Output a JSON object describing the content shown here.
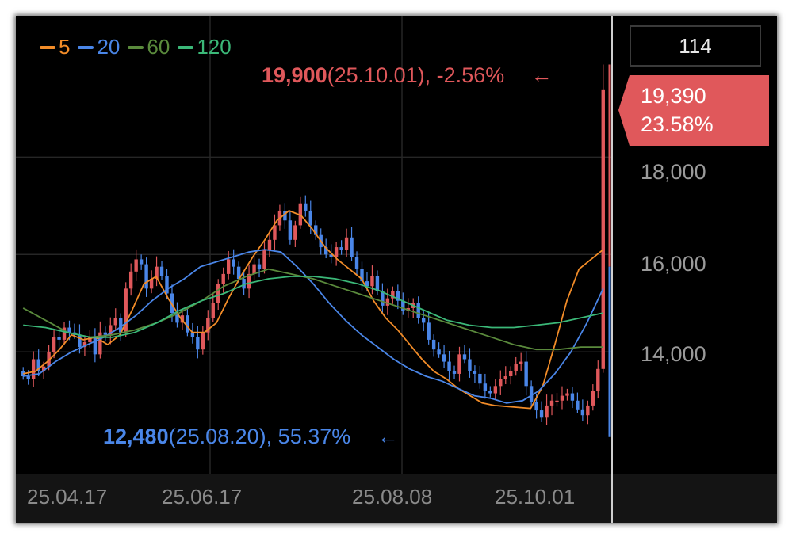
{
  "legend": [
    {
      "label": "5",
      "color": "#f28c28"
    },
    {
      "label": "20",
      "color": "#4a86e8"
    },
    {
      "label": "60",
      "color": "#5a8a3c"
    },
    {
      "label": "120",
      "color": "#3bb878"
    }
  ],
  "counter": "114",
  "annotations": {
    "high": {
      "value": "19,900",
      "detail": "(25.10.01), -2.56%",
      "arrow": "←"
    },
    "low": {
      "value": "12,480",
      "detail": "(25.08.20), 55.37%",
      "arrow": "←"
    }
  },
  "price_tag": {
    "price": "19,390",
    "change": "23.58%",
    "color": "#e0585b"
  },
  "colors": {
    "up": "#e0585b",
    "down": "#4a86e8",
    "background": "#000000",
    "grid": "#262626"
  },
  "chart_data": {
    "type": "candlestick",
    "y_ticks": [
      "18,000",
      "16,000",
      "14,000"
    ],
    "x_ticks": [
      "25.04.17",
      "25.06.17",
      "25.08.08",
      "25.10.01"
    ],
    "ylim": [
      11500,
      20900
    ],
    "n_candles": 114,
    "close": [
      13500,
      13450,
      13850,
      13600,
      13700,
      14000,
      14300,
      14250,
      14500,
      14400,
      14350,
      14100,
      14200,
      14300,
      13950,
      14400,
      14350,
      14550,
      14700,
      14400,
      15300,
      15650,
      15900,
      15800,
      15300,
      15500,
      15750,
      15550,
      15200,
      14800,
      14600,
      14750,
      14400,
      14300,
      14050,
      14400,
      14700,
      15000,
      15400,
      15600,
      15900,
      15750,
      15500,
      15300,
      15600,
      15800,
      15700,
      16100,
      16300,
      16600,
      16900,
      16700,
      16300,
      16600,
      17050,
      16900,
      16600,
      16400,
      16150,
      16000,
      15950,
      16150,
      16100,
      16350,
      15950,
      15700,
      15450,
      15350,
      15550,
      15250,
      14950,
      15100,
      15250,
      15050,
      14850,
      14900,
      15000,
      14700,
      14600,
      14250,
      14050,
      13950,
      13800,
      13600,
      13550,
      13950,
      13850,
      13600,
      13550,
      13350,
      13200,
      13150,
      13300,
      13450,
      13500,
      13600,
      13750,
      13800,
      13300,
      12980,
      12800,
      12650,
      12900,
      13000,
      13000,
      13100,
      13150,
      13000,
      12820,
      12700,
      12900,
      13200,
      13650,
      19390
    ],
    "high_point": {
      "value": 19900,
      "date": "25.10.01",
      "change_pct": -2.56
    },
    "low_point": {
      "value": 12480,
      "date": "25.08.20",
      "change_pct": 55.37
    },
    "current": {
      "value": 19390,
      "change_pct": 23.58
    },
    "series": [
      {
        "name": "5",
        "values": [
          13550,
          13600,
          13800,
          14050,
          14350,
          14250,
          14300,
          14150,
          14350,
          14850,
          15400,
          15550,
          15100,
          14700,
          14400,
          14400,
          14600,
          15100,
          15550,
          15950,
          16300,
          16700,
          16900,
          16800,
          16500,
          16150,
          15900,
          15700,
          15500,
          15050,
          14700,
          14450,
          14150,
          13850,
          13600,
          13450,
          13250,
          13100,
          12950,
          12900,
          12880,
          12860,
          12840,
          13300,
          14150,
          15050,
          15700,
          15900,
          16100
        ]
      },
      {
        "name": "20",
        "values": [
          13500,
          13550,
          13800,
          14000,
          14150,
          14300,
          14500,
          14750,
          15050,
          15300,
          15500,
          15750,
          15850,
          15950,
          16050,
          16100,
          16050,
          15750,
          15400,
          15000,
          14650,
          14350,
          14100,
          13850,
          13650,
          13500,
          13400,
          13250,
          13100,
          13050,
          12950,
          13000,
          13200,
          13550,
          14000,
          14600,
          15300
        ]
      },
      {
        "name": "60",
        "values": [
          14900,
          14650,
          14400,
          14300,
          14350,
          14450,
          14600,
          14800,
          15050,
          15350,
          15550,
          15700,
          15600,
          15500,
          15350,
          15200,
          15050,
          14900,
          14750,
          14600,
          14450,
          14300,
          14150,
          14050,
          14050,
          14100,
          14100
        ]
      },
      {
        "name": "120",
        "values": [
          14550,
          14500,
          14400,
          14300,
          14300,
          14400,
          14600,
          14850,
          15050,
          15200,
          15400,
          15500,
          15550,
          15550,
          15500,
          15400,
          15250,
          15050,
          14850,
          14650,
          14550,
          14500,
          14500,
          14550,
          14600,
          14700,
          14800
        ]
      }
    ]
  }
}
